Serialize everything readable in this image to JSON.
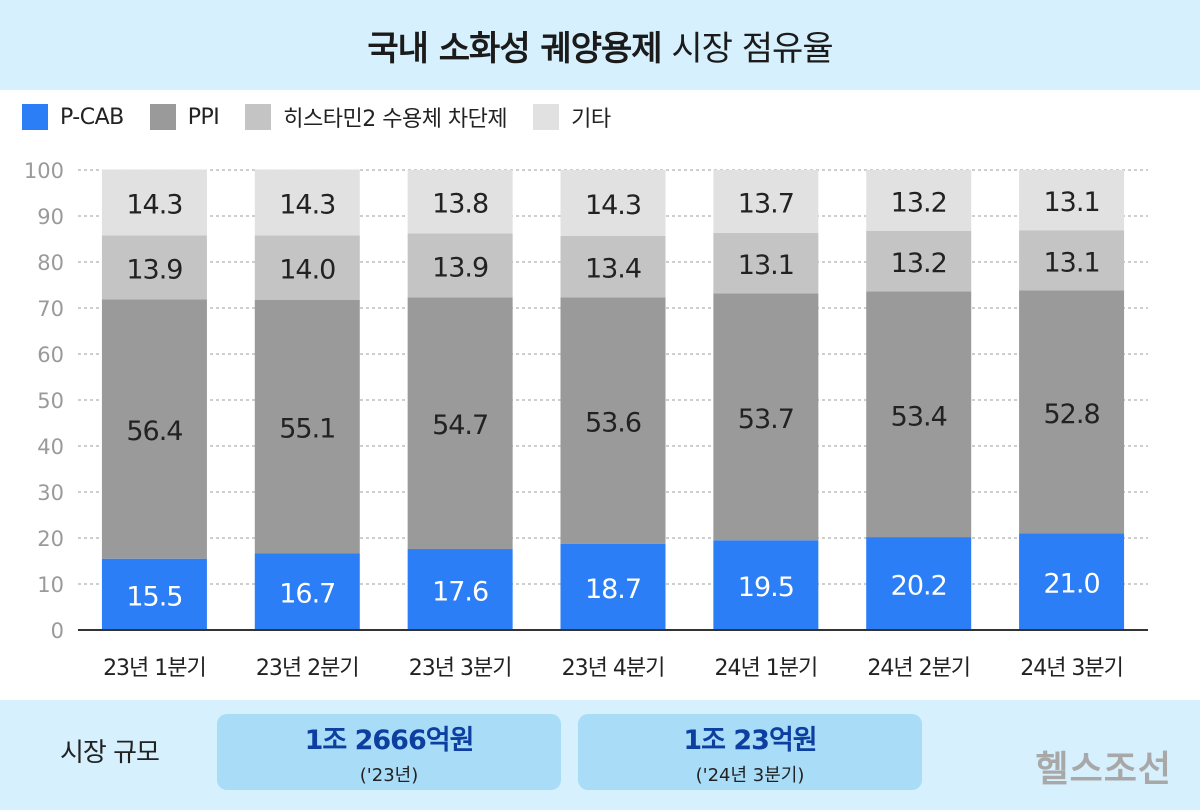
{
  "title_bold": "국내 소화성 궤양용제",
  "title_rest": "시장 점유율",
  "legend": [
    {
      "label": "P-CAB",
      "color": "#2b7ef5"
    },
    {
      "label": "PPI",
      "color": "#9a9a9a"
    },
    {
      "label": "히스타민2 수용체 차단제",
      "color": "#c4c4c4"
    },
    {
      "label": "기타",
      "color": "#e1e1e1"
    }
  ],
  "chart_data": {
    "type": "bar",
    "stacked": true,
    "categories": [
      "23년 1분기",
      "23년 2분기",
      "23년 3분기",
      "23년 4분기",
      "24년 1분기",
      "24년 2분기",
      "24년 3분기"
    ],
    "series": [
      {
        "name": "P-CAB",
        "color": "#2b7ef5",
        "values": [
          15.5,
          16.7,
          17.6,
          18.7,
          19.5,
          20.2,
          21.0
        ],
        "labels": [
          "15.5",
          "16.7",
          "17.6",
          "18.7",
          "19.5",
          "20.2",
          "21.0"
        ]
      },
      {
        "name": "PPI",
        "color": "#9a9a9a",
        "values": [
          56.4,
          55.1,
          54.7,
          53.6,
          53.7,
          53.4,
          52.8
        ],
        "labels": [
          "56.4",
          "55.1",
          "54.7",
          "53.6",
          "53.7",
          "53.4",
          "52.8"
        ]
      },
      {
        "name": "히스타민2 수용체 차단제",
        "color": "#c4c4c4",
        "values": [
          13.9,
          14.0,
          13.9,
          13.4,
          13.1,
          13.2,
          13.1
        ],
        "labels": [
          "13.9",
          "14.0",
          "13.9",
          "13.4",
          "13.1",
          "13.2",
          "13.1"
        ]
      },
      {
        "name": "기타",
        "color": "#e1e1e1",
        "values": [
          14.3,
          14.3,
          13.8,
          14.3,
          13.7,
          13.2,
          13.1
        ],
        "labels": [
          "14.3",
          "14.3",
          "13.8",
          "14.3",
          "13.7",
          "13.2",
          "13.1"
        ]
      }
    ],
    "ylim": [
      0,
      100
    ],
    "yticks": [
      0,
      10,
      20,
      30,
      40,
      50,
      60,
      70,
      80,
      90,
      100
    ],
    "grid": true,
    "legend_position": "top-left"
  },
  "footer": {
    "label": "시장 규모",
    "boxes": [
      {
        "amount": "1조 2666억원",
        "period": "('23년)"
      },
      {
        "amount": "1조 23억원",
        "period": "('24년 3분기)"
      }
    ],
    "brand": "헬스조선"
  }
}
